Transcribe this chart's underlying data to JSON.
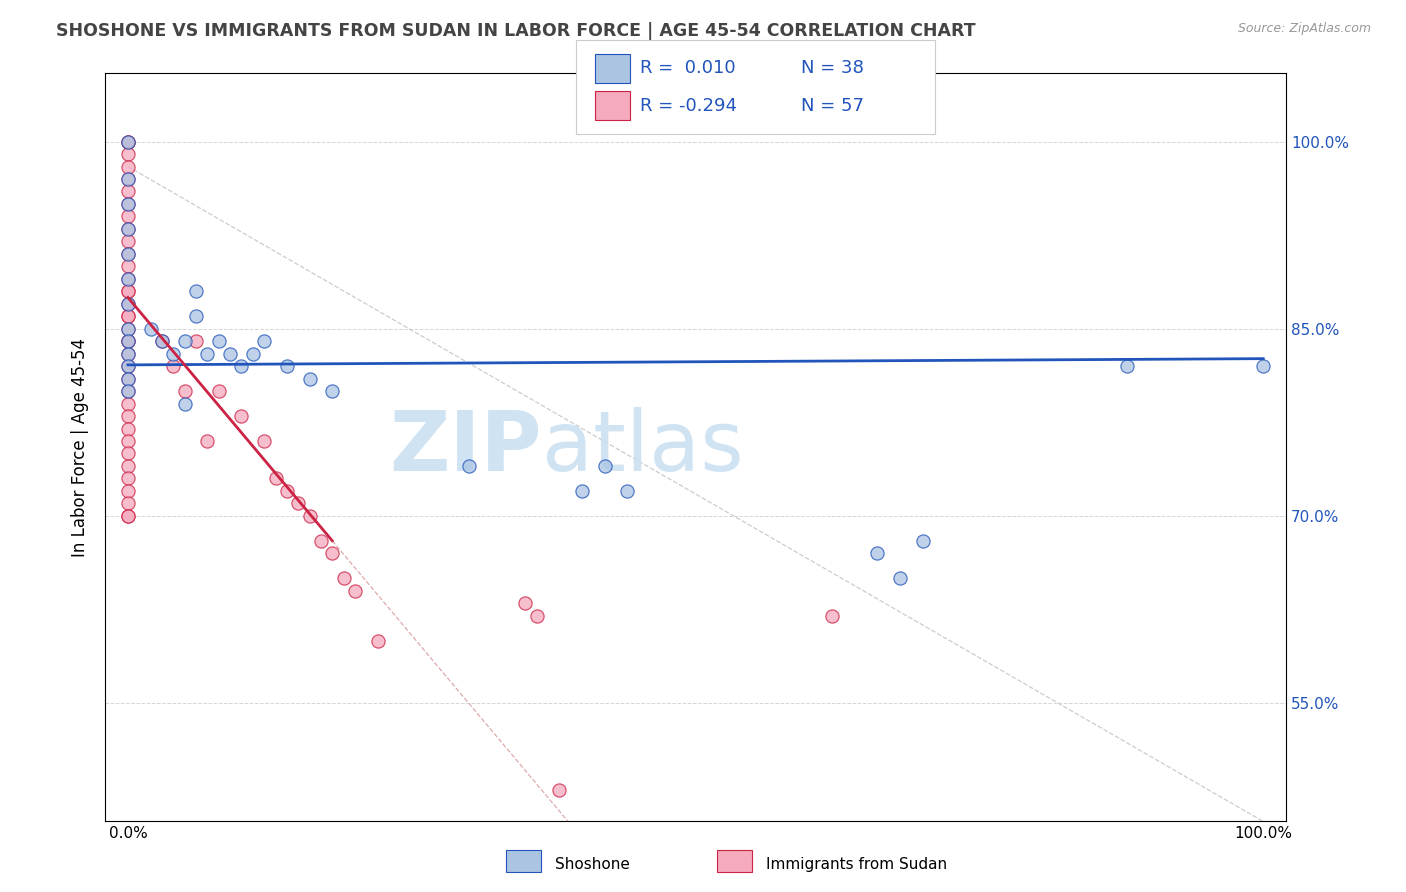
{
  "title": "SHOSHONE VS IMMIGRANTS FROM SUDAN IN LABOR FORCE | AGE 45-54 CORRELATION CHART",
  "source_text": "Source: ZipAtlas.com",
  "ylabel": "In Labor Force | Age 45-54",
  "xlim": [
    -0.02,
    1.02
  ],
  "ylim": [
    0.455,
    1.055
  ],
  "yticks": [
    0.55,
    0.7,
    0.85,
    1.0
  ],
  "ytick_labels": [
    "55.0%",
    "70.0%",
    "85.0%",
    "100.0%"
  ],
  "xtick_labels_left": "0.0%",
  "xtick_labels_right": "100.0%",
  "legend_r1": "R =  0.010",
  "legend_n1": "N = 38",
  "legend_r2": "R = -0.294",
  "legend_n2": "N = 57",
  "shoshone_color": "#aac4e2",
  "sudan_color": "#f5aabe",
  "trend_shoshone_color": "#2255bb",
  "trend_sudan_color": "#cc2244",
  "ref_line_color": "#ddaaaa",
  "watermark_color": "#c8dff2",
  "legend_text_color": "#2255bb",
  "shoshone_x": [
    0.0,
    0.0,
    0.0,
    0.0,
    0.0,
    0.0,
    0.0,
    0.0,
    0.0,
    0.0,
    0.0,
    0.0,
    0.0,
    0.02,
    0.03,
    0.04,
    0.05,
    0.06,
    0.07,
    0.08,
    0.09,
    0.1,
    0.11,
    0.12,
    0.14,
    0.16,
    0.18,
    0.3,
    0.4,
    0.42,
    0.44,
    0.66,
    0.68,
    0.7,
    0.88,
    1.0,
    0.05,
    0.06
  ],
  "shoshone_y": [
    1.0,
    0.97,
    0.95,
    0.93,
    0.91,
    0.89,
    0.87,
    0.85,
    0.84,
    0.83,
    0.82,
    0.81,
    0.8,
    0.85,
    0.84,
    0.83,
    0.84,
    0.86,
    0.83,
    0.84,
    0.83,
    0.82,
    0.83,
    0.84,
    0.82,
    0.81,
    0.8,
    0.74,
    0.72,
    0.74,
    0.72,
    0.67,
    0.65,
    0.68,
    0.82,
    0.82,
    0.79,
    0.88
  ],
  "sudan_x": [
    0.0,
    0.0,
    0.0,
    0.0,
    0.0,
    0.0,
    0.0,
    0.0,
    0.0,
    0.0,
    0.0,
    0.0,
    0.0,
    0.0,
    0.0,
    0.0,
    0.0,
    0.0,
    0.0,
    0.0,
    0.0,
    0.0,
    0.0,
    0.0,
    0.0,
    0.0,
    0.0,
    0.0,
    0.0,
    0.0,
    0.0,
    0.0,
    0.0,
    0.0,
    0.0,
    0.0,
    0.03,
    0.04,
    0.05,
    0.06,
    0.07,
    0.08,
    0.1,
    0.12,
    0.13,
    0.14,
    0.15,
    0.16,
    0.17,
    0.18,
    0.19,
    0.2,
    0.22,
    0.35,
    0.36,
    0.38,
    0.62
  ],
  "sudan_y": [
    1.0,
    1.0,
    0.99,
    0.98,
    0.97,
    0.96,
    0.95,
    0.94,
    0.93,
    0.92,
    0.91,
    0.9,
    0.89,
    0.88,
    0.87,
    0.86,
    0.85,
    0.84,
    0.83,
    0.82,
    0.81,
    0.8,
    0.79,
    0.78,
    0.77,
    0.76,
    0.75,
    0.74,
    0.73,
    0.72,
    0.71,
    0.7,
    0.88,
    0.86,
    0.84,
    0.7,
    0.84,
    0.82,
    0.8,
    0.84,
    0.76,
    0.8,
    0.78,
    0.76,
    0.73,
    0.72,
    0.71,
    0.7,
    0.68,
    0.67,
    0.65,
    0.64,
    0.6,
    0.63,
    0.62,
    0.48,
    0.62
  ],
  "trend_shoshone_x0": 0.0,
  "trend_shoshone_x1": 1.0,
  "trend_shoshone_y0": 0.821,
  "trend_shoshone_y1": 0.826,
  "trend_sudan_x0": 0.0,
  "trend_sudan_x1": 0.18,
  "trend_sudan_y0": 0.875,
  "trend_sudan_y1": 0.68,
  "ref_line_x0": 0.0,
  "ref_line_y0": 0.98,
  "ref_line_x1": 1.0,
  "ref_line_y1": 0.455
}
